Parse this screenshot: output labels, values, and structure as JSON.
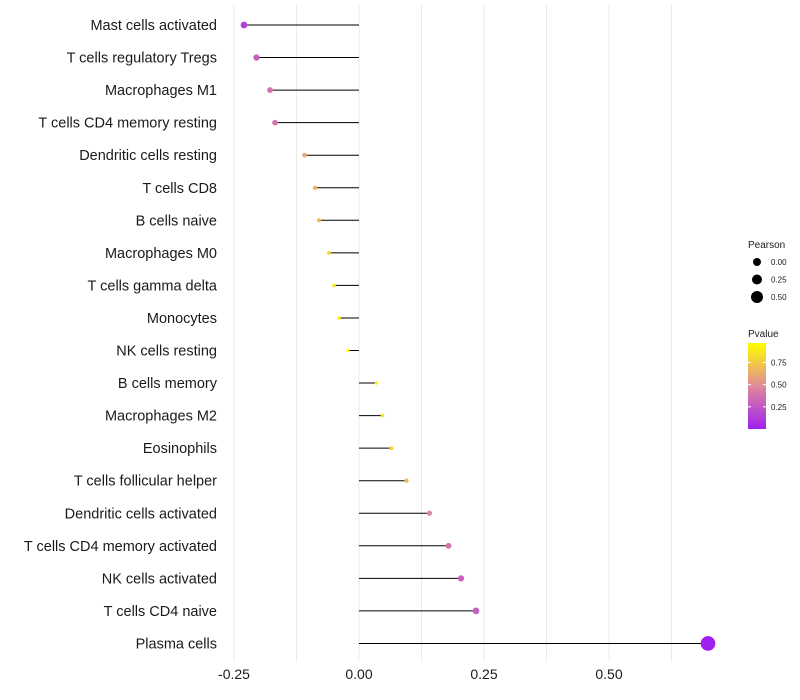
{
  "chart_data": {
    "type": "lollipop",
    "title": "",
    "xlabel": "",
    "ylabel": "",
    "xlim": [
      -0.25,
      0.7
    ],
    "x_ticks": [
      -0.25,
      0.0,
      0.25,
      0.5
    ],
    "x_tick_labels": [
      "-0.25",
      "0.00",
      "0.25",
      "0.50"
    ],
    "grid": true,
    "categories": [
      "Mast cells activated",
      "T cells regulatory  Tregs",
      "Macrophages M1",
      "T cells CD4 memory resting",
      "Dendritic cells resting",
      "T cells CD8",
      "B cells naive",
      "Macrophages M0",
      "T cells gamma delta",
      "Monocytes",
      "NK cells resting",
      "B cells memory",
      "Macrophages M2",
      "Eosinophils",
      "T cells follicular helper",
      "Dendritic cells activated",
      "T cells CD4 memory activated",
      "NK cells activated",
      "T cells CD4 naive",
      "Plasma cells"
    ],
    "pearson": [
      -0.23,
      -0.205,
      -0.178,
      -0.168,
      -0.109,
      -0.088,
      -0.08,
      -0.06,
      -0.05,
      -0.04,
      -0.022,
      0.035,
      0.047,
      0.065,
      0.095,
      0.141,
      0.179,
      0.204,
      0.234,
      0.698
    ],
    "pvalue": [
      0.15,
      0.3,
      0.4,
      0.4,
      0.62,
      0.68,
      0.72,
      0.82,
      0.9,
      0.95,
      1.0,
      0.95,
      0.9,
      0.82,
      0.7,
      0.48,
      0.4,
      0.32,
      0.3,
      0.0
    ],
    "legend": {
      "size_title": "Pearson",
      "size_entries": [
        "0.00",
        "0.25",
        "0.50"
      ],
      "size_values": [
        0.0,
        0.25,
        0.5
      ],
      "color_title": "Pvalue",
      "color_ticks": [
        "0.75",
        "0.50",
        "0.25"
      ],
      "color_tick_values": [
        0.75,
        0.5,
        0.25
      ],
      "color_low": "#a020f0",
      "color_high": "#ffff00",
      "placement": "right"
    }
  }
}
